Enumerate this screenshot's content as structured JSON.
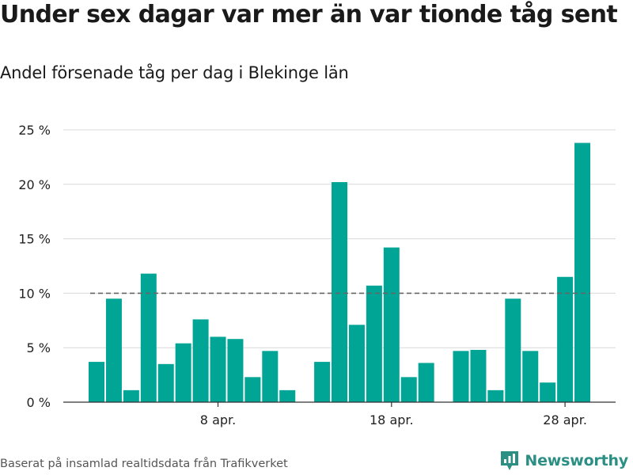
{
  "title": "Under sex dagar var mer än var tionde tåg sent",
  "subtitle": "Andel försenade tåg per dag i Blekinge län",
  "source": "Baserat på insamlad realtidsdata från Trafikverket",
  "brand": {
    "name": "Newsworthy",
    "icon": "newsworthy-logo-icon",
    "color": "#2b8f83"
  },
  "colors": {
    "bar": "#00a596",
    "grid": "#d9d9d9",
    "reference": "#666666",
    "axis": "#333333"
  },
  "chart_data": {
    "type": "bar",
    "title": "Under sex dagar var mer än var tionde tåg sent",
    "subtitle": "Andel försenade tåg per dag i Blekinge län",
    "xlabel": "",
    "ylabel": "",
    "ylim": [
      0,
      25
    ],
    "y_ticks": [
      0,
      5,
      10,
      15,
      20,
      25
    ],
    "y_tick_labels": [
      "0 %",
      "5 %",
      "10 %",
      "15 %",
      "20 %",
      "25 %"
    ],
    "x_tick_labels": [
      {
        "day_index": 7,
        "label": "8 apr."
      },
      {
        "day_index": 17,
        "label": "18 apr."
      },
      {
        "day_index": 27,
        "label": "28 apr."
      }
    ],
    "grid": true,
    "reference_line": {
      "value": 10,
      "style": "dashed"
    },
    "categories": [
      "1 apr.",
      "2 apr.",
      "3 apr.",
      "4 apr.",
      "5 apr.",
      "6 apr.",
      "7 apr.",
      "8 apr.",
      "9 apr.",
      "10 apr.",
      "11 apr.",
      "12 apr.",
      "13 apr.",
      "14 apr.",
      "15 apr.",
      "16 apr.",
      "17 apr.",
      "18 apr.",
      "19 apr.",
      "20 apr.",
      "21 apr.",
      "22 apr.",
      "23 apr.",
      "24 apr.",
      "25 apr.",
      "26 apr.",
      "27 apr.",
      "28 apr.",
      "29 apr."
    ],
    "series": [
      {
        "values": [
          3.7,
          9.5,
          1.1,
          11.8,
          3.5,
          5.4,
          7.6,
          6.0,
          5.8,
          2.3,
          4.7,
          1.1,
          null,
          3.7,
          20.2,
          7.1,
          10.7,
          14.2,
          2.3,
          3.6,
          null,
          4.7,
          4.8,
          1.1,
          9.5,
          4.7,
          1.8,
          11.5,
          23.8
        ]
      }
    ]
  }
}
